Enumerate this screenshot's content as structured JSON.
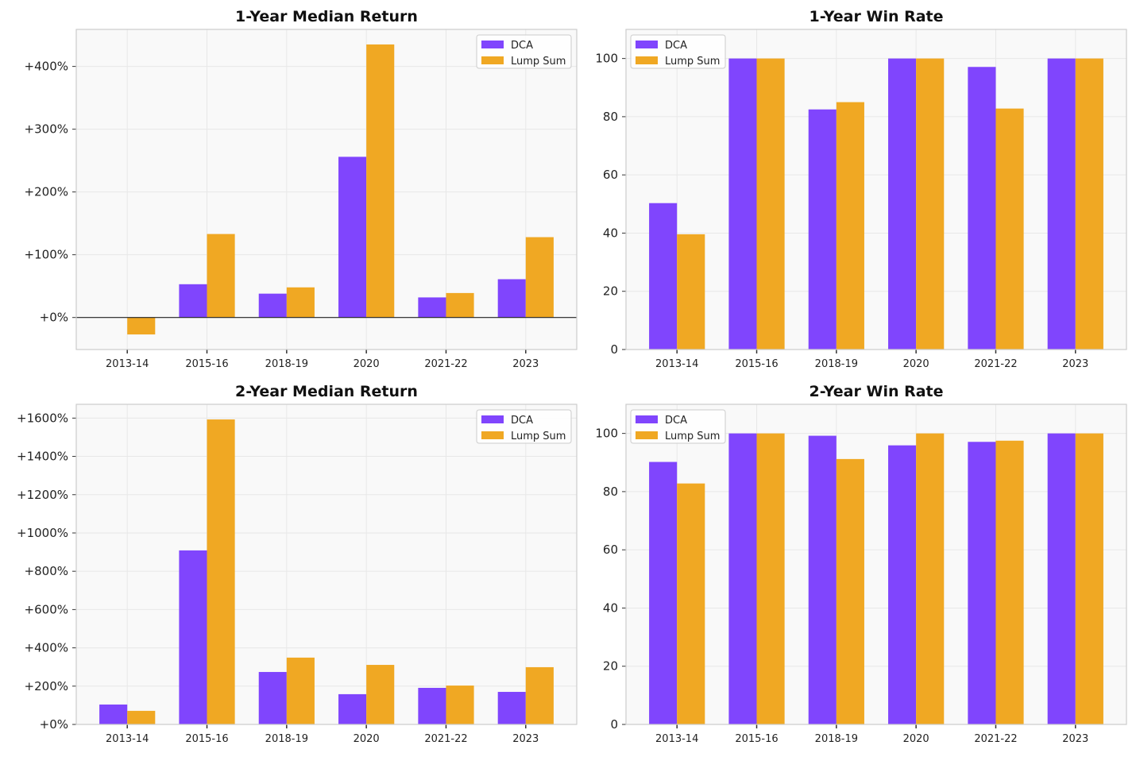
{
  "colors": {
    "DCA": "#8045fd",
    "Lump Sum": "#f0a823",
    "background": "#f9f9f9",
    "grid": "#e8e8e8",
    "zero_line": "#222222"
  },
  "chart_data": [
    {
      "type": "bar",
      "title": "1-Year Median Return",
      "categories": [
        "2013-14",
        "2015-16",
        "2018-19",
        "2020",
        "2021-22",
        "2023"
      ],
      "series": [
        {
          "name": "DCA",
          "values": [
            0,
            53,
            38,
            256,
            32,
            61
          ]
        },
        {
          "name": "Lump Sum",
          "values": [
            -27,
            133,
            48,
            435,
            39,
            128
          ]
        }
      ],
      "ylim": [
        -51,
        459
      ],
      "yticks": [
        0,
        100,
        200,
        300,
        400
      ],
      "ytick_labels": [
        "+0%",
        "+100%",
        "+200%",
        "+300%",
        "+400%"
      ],
      "zero_line": true,
      "grid": true,
      "legend": "top-right"
    },
    {
      "type": "bar",
      "title": "1-Year Win Rate",
      "categories": [
        "2013-14",
        "2015-16",
        "2018-19",
        "2020",
        "2021-22",
        "2023"
      ],
      "series": [
        {
          "name": "DCA",
          "values": [
            50.3,
            100,
            82.5,
            100,
            97.1,
            100
          ]
        },
        {
          "name": "Lump Sum",
          "values": [
            39.6,
            100,
            85.0,
            100,
            82.8,
            100
          ]
        }
      ],
      "ylim": [
        0,
        110
      ],
      "yticks": [
        0,
        20,
        40,
        60,
        80,
        100
      ],
      "ytick_labels": [
        "0",
        "20",
        "40",
        "60",
        "80",
        "100"
      ],
      "zero_line": false,
      "grid": true,
      "legend": "top-left"
    },
    {
      "type": "bar",
      "title": "2-Year Median Return",
      "categories": [
        "2013-14",
        "2015-16",
        "2018-19",
        "2020",
        "2021-22",
        "2023"
      ],
      "series": [
        {
          "name": "DCA",
          "values": [
            104,
            909,
            274,
            158,
            191,
            170
          ]
        },
        {
          "name": "Lump Sum",
          "values": [
            71,
            1593,
            349,
            311,
            203,
            299
          ]
        }
      ],
      "ylim": [
        0,
        1672
      ],
      "yticks": [
        0,
        200,
        400,
        600,
        800,
        1000,
        1200,
        1400,
        1600
      ],
      "ytick_labels": [
        "+0%",
        "+200%",
        "+400%",
        "+600%",
        "+800%",
        "+1000%",
        "+1200%",
        "+1400%",
        "+1600%"
      ],
      "zero_line": false,
      "grid": true,
      "legend": "top-right"
    },
    {
      "type": "bar",
      "title": "2-Year Win Rate",
      "categories": [
        "2013-14",
        "2015-16",
        "2018-19",
        "2020",
        "2021-22",
        "2023"
      ],
      "series": [
        {
          "name": "DCA",
          "values": [
            90.2,
            100,
            99.2,
            95.9,
            97.1,
            100
          ]
        },
        {
          "name": "Lump Sum",
          "values": [
            82.8,
            100,
            91.2,
            100,
            97.5,
            100
          ]
        }
      ],
      "ylim": [
        0,
        110
      ],
      "yticks": [
        0,
        20,
        40,
        60,
        80,
        100
      ],
      "ytick_labels": [
        "0",
        "20",
        "40",
        "60",
        "80",
        "100"
      ],
      "zero_line": false,
      "grid": true,
      "legend": "top-left"
    }
  ]
}
